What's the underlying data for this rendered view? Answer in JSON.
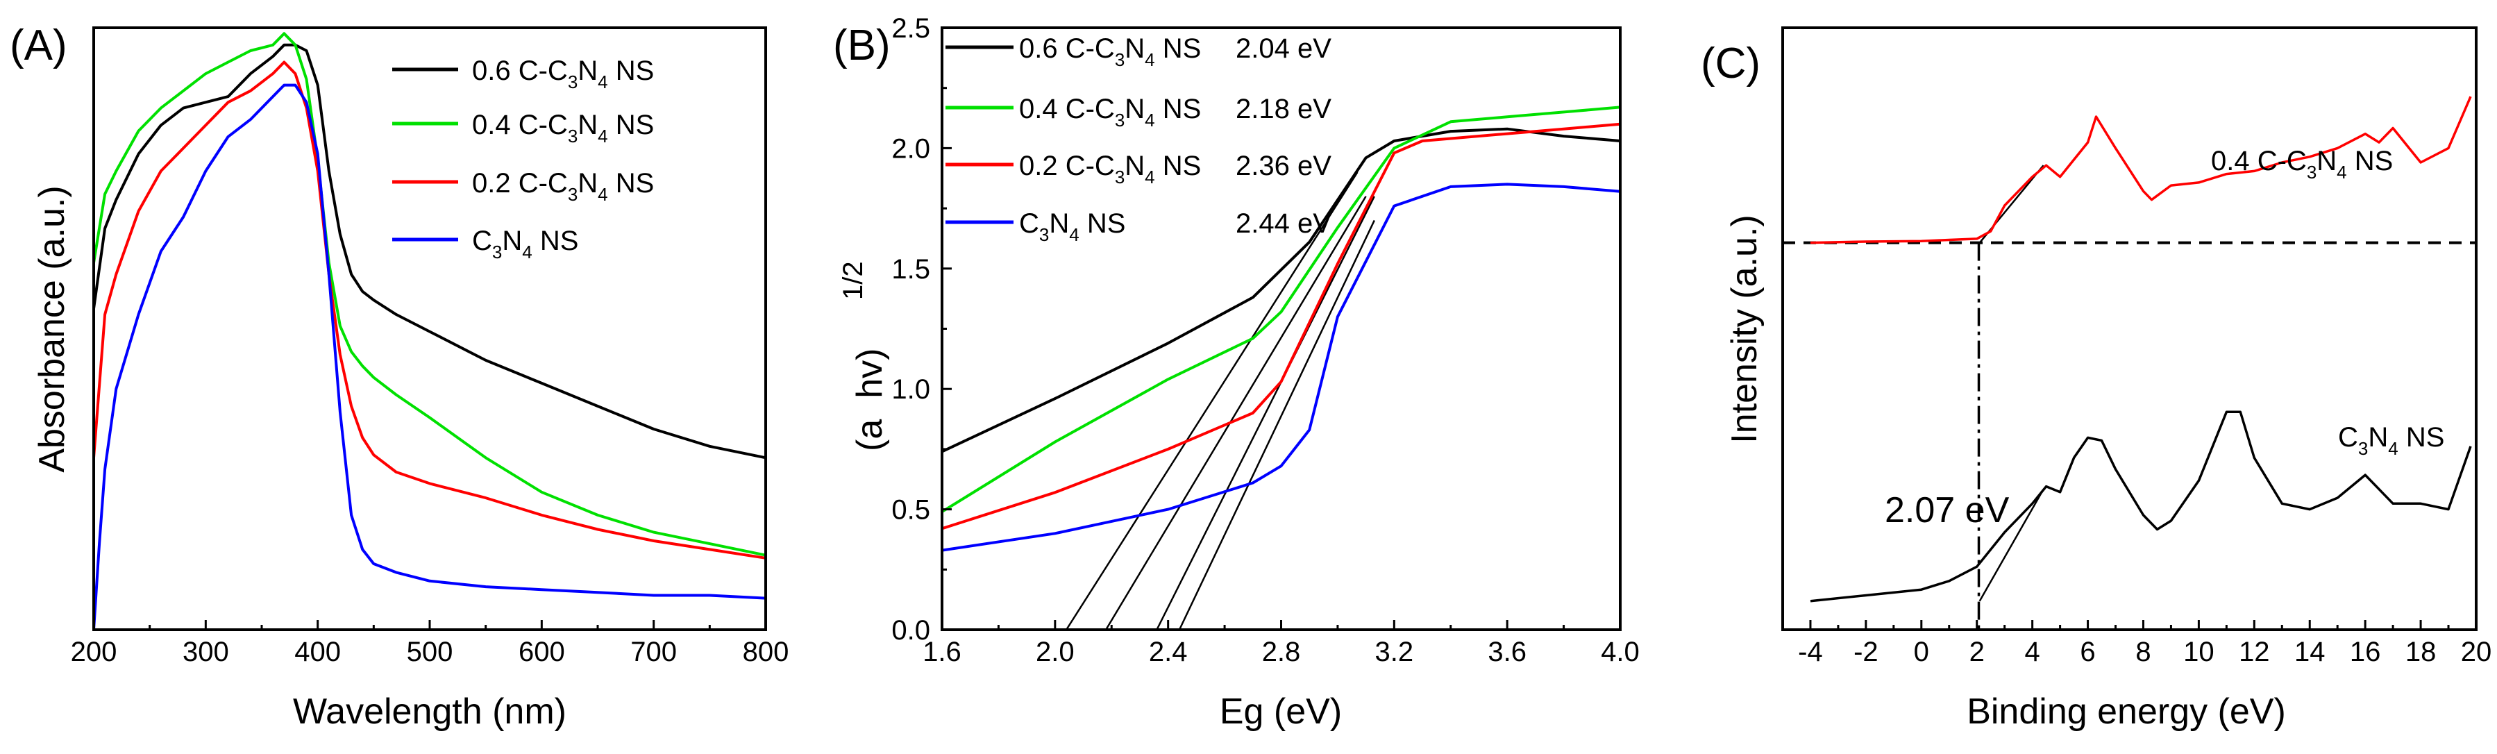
{
  "chart_data": [
    {
      "panel": "(A)",
      "type": "line",
      "xlabel": "Wavelength (nm)",
      "ylabel": "Absorbance (a.u.)",
      "xlim": [
        200,
        800
      ],
      "xticks": [
        "200",
        "300",
        "400",
        "500",
        "600",
        "700",
        "800"
      ],
      "yticks": [],
      "series": [
        {
          "name": "0.6 C-C3N4 NS",
          "legend": {
            "pre": "0.6 C-C",
            "s1": "3",
            "mid": "N",
            "s2": "4",
            "post": " NS"
          },
          "color": "#000000",
          "x": [
            200,
            210,
            220,
            240,
            260,
            280,
            300,
            320,
            340,
            360,
            370,
            380,
            390,
            400,
            410,
            420,
            430,
            440,
            450,
            470,
            500,
            550,
            600,
            650,
            700,
            750,
            800
          ],
          "y": [
            0.56,
            0.7,
            0.75,
            0.83,
            0.88,
            0.91,
            0.92,
            0.93,
            0.97,
            1.0,
            1.02,
            1.02,
            1.01,
            0.95,
            0.8,
            0.69,
            0.62,
            0.59,
            0.575,
            0.55,
            0.52,
            0.47,
            0.43,
            0.39,
            0.35,
            0.32,
            0.3
          ]
        },
        {
          "name": "0.4 C-C3N4 NS",
          "legend": {
            "pre": "0.4 C-C",
            "s1": "3",
            "mid": "N",
            "s2": "4",
            "post": " NS"
          },
          "color": "#00e000",
          "x": [
            200,
            210,
            220,
            240,
            260,
            280,
            300,
            320,
            340,
            360,
            370,
            380,
            390,
            400,
            410,
            420,
            430,
            440,
            450,
            470,
            500,
            550,
            600,
            650,
            700,
            750,
            800
          ],
          "y": [
            0.64,
            0.76,
            0.8,
            0.87,
            0.91,
            0.94,
            0.97,
            0.99,
            1.01,
            1.02,
            1.04,
            1.02,
            0.96,
            0.82,
            0.64,
            0.53,
            0.485,
            0.46,
            0.44,
            0.41,
            0.37,
            0.3,
            0.24,
            0.2,
            0.17,
            0.15,
            0.13
          ]
        },
        {
          "name": "0.2 C-C3N4 NS",
          "legend": {
            "pre": "0.2 C-C",
            "s1": "3",
            "mid": "N",
            "s2": "4",
            "post": " NS"
          },
          "color": "#ff0000",
          "x": [
            200,
            210,
            220,
            240,
            260,
            280,
            300,
            320,
            340,
            360,
            370,
            380,
            390,
            400,
            410,
            420,
            430,
            440,
            450,
            470,
            500,
            550,
            600,
            650,
            700,
            750,
            800
          ],
          "y": [
            0.3,
            0.55,
            0.62,
            0.73,
            0.8,
            0.84,
            0.88,
            0.92,
            0.94,
            0.97,
            0.99,
            0.97,
            0.91,
            0.8,
            0.62,
            0.48,
            0.39,
            0.335,
            0.305,
            0.275,
            0.255,
            0.23,
            0.2,
            0.175,
            0.155,
            0.14,
            0.125
          ]
        },
        {
          "name": "C3N4 NS",
          "legend": {
            "pre": "C",
            "s1": "3",
            "mid": "N",
            "s2": "4",
            "post": " NS"
          },
          "color": "#0000ff",
          "x": [
            200,
            205,
            210,
            220,
            240,
            260,
            280,
            300,
            320,
            340,
            360,
            370,
            380,
            390,
            400,
            410,
            420,
            430,
            440,
            450,
            470,
            500,
            550,
            600,
            650,
            700,
            750,
            800
          ],
          "y": [
            0.0,
            0.15,
            0.28,
            0.42,
            0.55,
            0.66,
            0.72,
            0.8,
            0.86,
            0.89,
            0.93,
            0.95,
            0.95,
            0.92,
            0.83,
            0.62,
            0.38,
            0.2,
            0.14,
            0.115,
            0.1,
            0.085,
            0.075,
            0.07,
            0.065,
            0.06,
            0.06,
            0.055
          ]
        }
      ]
    },
    {
      "panel": "(B)",
      "type": "line",
      "xlabel": "Eg (eV)",
      "ylabel": {
        "open": "(a",
        "h": "hv)",
        "exp": "1/2"
      },
      "xlim": [
        1.6,
        4.0
      ],
      "ylim": [
        0.0,
        2.5
      ],
      "xticks": [
        "1.6",
        "2.0",
        "2.4",
        "2.8",
        "3.2",
        "3.6",
        "4.0"
      ],
      "yticks": [
        "0.0",
        "0.5",
        "1.0",
        "1.5",
        "2.0",
        "2.5"
      ],
      "series": [
        {
          "name": "0.6 C-C3N4 NS",
          "legend": {
            "pre": "0.6 C-C",
            "s1": "3",
            "mid": "N",
            "s2": "4",
            "post": " NS"
          },
          "value": "2.04 eV",
          "color": "#000000",
          "x": [
            1.6,
            2.0,
            2.4,
            2.7,
            2.9,
            3.1,
            3.2,
            3.4,
            3.6,
            3.8,
            4.0
          ],
          "y": [
            0.74,
            0.96,
            1.19,
            1.38,
            1.61,
            1.96,
            2.03,
            2.07,
            2.08,
            2.05,
            2.03
          ]
        },
        {
          "name": "0.4 C-C3N4 NS",
          "legend": {
            "pre": "0.4 C-C",
            "s1": "3",
            "mid": "N",
            "s2": "4",
            "post": " NS"
          },
          "value": "2.18 eV",
          "color": "#00e000",
          "x": [
            1.6,
            2.0,
            2.4,
            2.7,
            2.8,
            3.0,
            3.2,
            3.4,
            3.6,
            3.8,
            4.0
          ],
          "y": [
            0.49,
            0.78,
            1.04,
            1.21,
            1.32,
            1.67,
            2.0,
            2.11,
            2.13,
            2.15,
            2.17
          ]
        },
        {
          "name": "0.2 C-C3N4 NS",
          "legend": {
            "pre": "0.2 C-C",
            "s1": "3",
            "mid": "N",
            "s2": "4",
            "post": " NS"
          },
          "value": "2.36 eV",
          "color": "#ff0000",
          "x": [
            1.6,
            2.0,
            2.4,
            2.7,
            2.8,
            3.0,
            3.2,
            3.3,
            3.6,
            3.8,
            4.0
          ],
          "y": [
            0.42,
            0.57,
            0.75,
            0.9,
            1.03,
            1.52,
            1.98,
            2.03,
            2.06,
            2.08,
            2.1
          ]
        },
        {
          "name": "C3N4 NS",
          "legend": {
            "pre": "C",
            "s1": "3",
            "mid": "N",
            "s2": "4",
            "post": " NS"
          },
          "value": "2.44 eV",
          "color": "#0000ff",
          "x": [
            1.6,
            2.0,
            2.4,
            2.7,
            2.8,
            2.9,
            3.0,
            3.2,
            3.4,
            3.6,
            3.8,
            4.0
          ],
          "y": [
            0.33,
            0.4,
            0.5,
            0.61,
            0.68,
            0.83,
            1.3,
            1.76,
            1.84,
            1.85,
            1.84,
            1.82
          ]
        }
      ],
      "tangents": [
        {
          "x1": 2.04,
          "y1": 0.0,
          "x2": 3.07,
          "y2": 1.9
        },
        {
          "x1": 2.18,
          "y1": 0.0,
          "x2": 3.1,
          "y2": 1.8
        },
        {
          "x1": 2.36,
          "y1": 0.0,
          "x2": 3.13,
          "y2": 1.8
        },
        {
          "x1": 2.44,
          "y1": 0.0,
          "x2": 3.13,
          "y2": 1.7
        }
      ]
    },
    {
      "panel": "(C)",
      "type": "line",
      "xlabel": "Binding energy (eV)",
      "ylabel": "Intensity (a.u.)",
      "xlim": [
        -5,
        20
      ],
      "ylim": [
        0,
        1
      ],
      "xticks": [
        "-4",
        "-2",
        "0",
        "2",
        "4",
        "6",
        "8",
        "10",
        "12",
        "14",
        "16",
        "18",
        "20"
      ],
      "yticks": [],
      "baseline_y": 0.625,
      "vline_x": 2.07,
      "annotation": "2.07 eV",
      "series": [
        {
          "name": "0.4 C-C3N4 NS",
          "label": {
            "pre": "0.4 C-C",
            "s1": "3",
            "mid": "N",
            "s2": "4",
            "post": " NS"
          },
          "color": "#ff0000",
          "x": [
            -4,
            -2,
            0,
            1,
            2,
            2.5,
            3,
            4,
            4.5,
            5,
            5.5,
            6,
            6.3,
            7,
            8,
            8.3,
            9,
            10,
            11,
            12,
            13,
            14,
            15,
            16,
            16.5,
            17,
            18,
            19,
            19.8
          ],
          "y": [
            0.625,
            0.627,
            0.628,
            0.63,
            0.632,
            0.645,
            0.69,
            0.74,
            0.76,
            0.74,
            0.77,
            0.8,
            0.845,
            0.79,
            0.715,
            0.7,
            0.725,
            0.73,
            0.745,
            0.75,
            0.765,
            0.775,
            0.79,
            0.815,
            0.8,
            0.825,
            0.765,
            0.79,
            0.88
          ]
        },
        {
          "name": "C3N4 NS",
          "label": {
            "pre": "C",
            "s1": "3",
            "mid": "N",
            "s2": "4",
            "post": " NS"
          },
          "color": "#000000",
          "x": [
            -4,
            -2,
            0,
            1,
            2,
            3,
            4,
            4.5,
            5,
            5.5,
            6,
            6.5,
            7,
            8,
            8.5,
            9,
            10,
            11,
            11.5,
            12,
            13,
            14,
            15,
            16,
            17,
            18,
            19,
            19.8
          ],
          "y": [
            0.0,
            0.01,
            0.02,
            0.035,
            0.06,
            0.12,
            0.17,
            0.2,
            0.19,
            0.25,
            0.285,
            0.28,
            0.23,
            0.15,
            0.125,
            0.14,
            0.21,
            0.33,
            0.33,
            0.25,
            0.17,
            0.16,
            0.18,
            0.22,
            0.17,
            0.17,
            0.16,
            0.27
          ]
        }
      ],
      "tangents": [
        {
          "x1": 2.1,
          "y1": 0.625,
          "x2": 4.4,
          "y2": 0.76
        },
        {
          "x1": 2.1,
          "y1": 0.0,
          "x2": 4.4,
          "y2": 0.195
        }
      ]
    }
  ]
}
